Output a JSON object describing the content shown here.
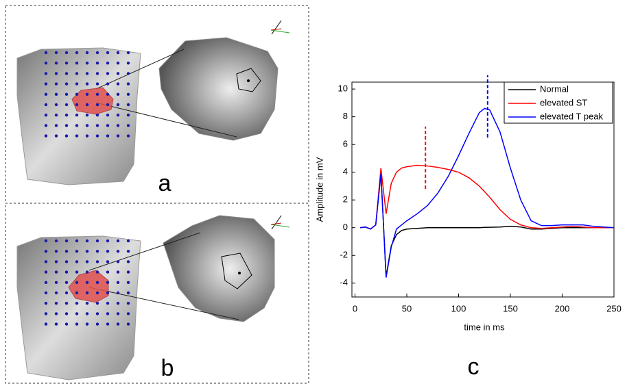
{
  "panel_labels": [
    "a",
    "b",
    "c"
  ],
  "chart_data": {
    "type": "line",
    "xlabel": "time in ms",
    "ylabel": "Amplitude in mV",
    "x": [
      5,
      10,
      15,
      20,
      25,
      30,
      35,
      40,
      45,
      50,
      60,
      70,
      80,
      90,
      100,
      110,
      120,
      125,
      130,
      140,
      150,
      160,
      170,
      180,
      190,
      200,
      210,
      220,
      230,
      240,
      250
    ],
    "series": [
      {
        "name": "Normal",
        "color": "#000000",
        "values": [
          0,
          0.05,
          -0.1,
          0.2,
          3.9,
          -3.5,
          -1.3,
          -0.5,
          -0.2,
          -0.1,
          -0.05,
          0,
          0,
          0,
          0,
          0,
          0,
          0.02,
          0.03,
          0.05,
          0.1,
          0.05,
          -0.1,
          -0.1,
          -0.05,
          0,
          0,
          0,
          0,
          0,
          0
        ]
      },
      {
        "name": "elevated ST",
        "color": "#ff0000",
        "values": [
          0,
          0.05,
          -0.1,
          0.2,
          4.3,
          1.0,
          3.2,
          4.0,
          4.3,
          4.4,
          4.5,
          4.45,
          4.35,
          4.2,
          4.0,
          3.6,
          3.0,
          2.6,
          2.2,
          1.3,
          0.6,
          0.2,
          0,
          -0.05,
          0,
          0.05,
          0.1,
          0.05,
          0,
          0,
          0
        ]
      },
      {
        "name": "elevated T peak",
        "color": "#0000ff",
        "values": [
          0,
          0.05,
          -0.1,
          0.2,
          3.9,
          -3.6,
          -1.4,
          -0.1,
          0.2,
          0.5,
          1.0,
          1.6,
          2.5,
          3.7,
          5.2,
          6.8,
          8.3,
          8.6,
          8.5,
          6.9,
          4.3,
          2.0,
          0.5,
          0.15,
          0.15,
          0.2,
          0.2,
          0.2,
          0.1,
          0.05,
          0
        ]
      }
    ],
    "vlines": [
      {
        "x": 68,
        "y": [
          2.8,
          7.3
        ],
        "color": "#ff0000"
      },
      {
        "x": 128,
        "y": [
          6.5,
          11
        ],
        "color": "#0000ff"
      }
    ],
    "xlim": [
      -3,
      250
    ],
    "ylim": [
      -5,
      10.5
    ],
    "xticks": [
      0,
      50,
      100,
      150,
      200,
      250
    ],
    "yticks": [
      -4,
      -2,
      0,
      2,
      4,
      6,
      8,
      10
    ],
    "legend": "upper right"
  }
}
